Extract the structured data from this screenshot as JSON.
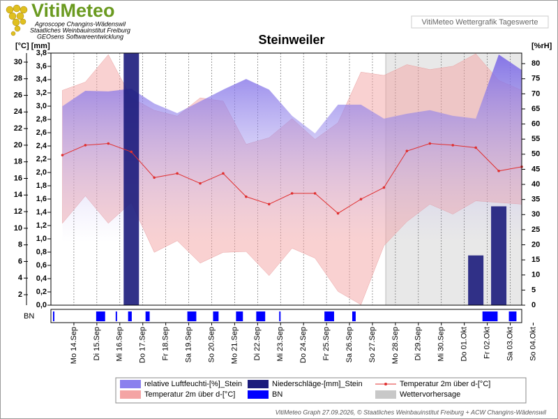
{
  "header": {
    "logo": "VitiMeteo",
    "lines": [
      "Agroscope Changins-Wädenswil",
      "Staatliches Weinbauinstitut Freiburg",
      "GEOsens Softwareentwicklung"
    ],
    "badge": "VitiMeteo Wettergrafik Tageswerte"
  },
  "footer": "VitiMeteo Graph 27.09.2026, © Staatliches Weinbauinstitut Freiburg + ACW Changins-Wädenswil",
  "chart_data": {
    "type": "weather",
    "title": "Steinweiler",
    "y_label": "[°C] [mm]",
    "y3_label": "[%rH]",
    "strip_label": "BN",
    "categories": [
      "Mo 14.Sep",
      "Di 15.Sep",
      "Mi 16.Sep",
      "Do 17.Sep",
      "Fr 18.Sep",
      "Sa 19.Sep",
      "So 20.Sep",
      "Mo 21.Sep",
      "Di 22.Sep",
      "Mi 23.Sep",
      "Do 24.Sep",
      "Fr 25.Sep",
      "Sa 26.Sep",
      "So 27.Sep",
      "Mo 28.Sep",
      "Di 29.Sep",
      "Mi 30.Sep",
      "Do 01.Okt",
      "Fr 02.Okt",
      "Sa 03.Okt",
      "So 04.Okt"
    ],
    "xlim": [
      -1,
      19.5
    ],
    "grid": true,
    "ylim": [
      0.74,
      31.09
    ],
    "yticks": [
      2,
      4,
      6,
      8,
      10,
      12,
      14,
      16,
      18,
      20,
      22,
      24,
      26,
      28,
      30
    ],
    "y2lim": [
      0,
      3.8
    ],
    "y2ticks": [
      {
        "value": 0,
        "label": "0,0"
      },
      {
        "value": 0.2,
        "label": "0,2"
      },
      {
        "value": 0.4,
        "label": "0,4"
      },
      {
        "value": 0.6,
        "label": "0,6"
      },
      {
        "value": 0.8,
        "label": "0,8"
      },
      {
        "value": 1.0,
        "label": "1,0"
      },
      {
        "value": 1.2,
        "label": "1,2"
      },
      {
        "value": 1.4,
        "label": "1,4"
      },
      {
        "value": 1.6,
        "label": "1,6"
      },
      {
        "value": 1.8,
        "label": "1,8"
      },
      {
        "value": 2.0,
        "label": "2,0"
      },
      {
        "value": 2.2,
        "label": "2,2"
      },
      {
        "value": 2.4,
        "label": "2,4"
      },
      {
        "value": 2.6,
        "label": "2,6"
      },
      {
        "value": 2.8,
        "label": "2,8"
      },
      {
        "value": 3.0,
        "label": "3,0"
      },
      {
        "value": 3.2,
        "label": "3,2"
      },
      {
        "value": 3.4,
        "label": "3,4"
      },
      {
        "value": 3.6,
        "label": "3,6"
      },
      {
        "value": 3.8,
        "label": "3,8"
      }
    ],
    "y3lim": [
      0,
      83.5
    ],
    "y3ticks": [
      0,
      5,
      10,
      15,
      20,
      25,
      30,
      35,
      40,
      45,
      50,
      55,
      60,
      65,
      70,
      75,
      80
    ],
    "series": [
      {
        "name": "relative Luftfeuchti-[%]_Stein",
        "color": "#8474ea",
        "type": "area",
        "axis": "y3",
        "values": [
          65.9,
          71.0,
          70.8,
          71.7,
          66.8,
          63.6,
          67.5,
          71.4,
          74.9,
          71.4,
          62.7,
          56.9,
          66.4,
          66.4,
          61.8,
          63.4,
          64.6,
          62.7,
          61.8,
          83.0,
          77.9
        ]
      },
      {
        "name": "Niederschläge-[mm]_Stein",
        "color": "#1c1c7c",
        "type": "bar",
        "axis": "y2",
        "values": [
          0,
          0,
          0,
          3.8,
          0,
          0,
          0,
          0,
          0,
          0,
          0,
          0,
          0,
          0,
          0,
          0,
          0,
          0,
          0.75,
          1.49,
          0
        ]
      },
      {
        "name": "Temperatur 2m über d-[°C]",
        "color": "#e03030",
        "type": "line",
        "axis": "y",
        "values": [
          18.8,
          20.0,
          20.2,
          19.2,
          16.1,
          16.6,
          15.4,
          16.6,
          13.8,
          12.9,
          14.2,
          14.2,
          11.8,
          13.5,
          14.9,
          19.3,
          20.2,
          20.0,
          19.7,
          16.9,
          17.4
        ]
      },
      {
        "name": "Temperatur 2m über d-[°C]",
        "color": "#f4a4a4",
        "type": "band",
        "axis": "y",
        "high": [
          26.6,
          27.6,
          30.9,
          25.7,
          24.2,
          23.5,
          25.7,
          25.3,
          20.1,
          20.9,
          23.2,
          20.7,
          22.7,
          28.8,
          28.4,
          29.7,
          29.1,
          29.5,
          31.0,
          27.8,
          26.6
        ],
        "low": [
          10.6,
          13.9,
          10.6,
          13.1,
          7.1,
          8.5,
          5.8,
          7.1,
          7.2,
          4.3,
          7.6,
          6.4,
          2.4,
          0.8,
          7.9,
          10.8,
          12.9,
          11.7,
          13.3,
          13.1,
          12.9
        ]
      },
      {
        "name": "BN",
        "color": "#0000ff",
        "type": "intervals",
        "intervals": [
          [
            -0.91,
            -0.85
          ],
          [
            0.97,
            1.36
          ],
          [
            1.82,
            1.88
          ],
          [
            2.36,
            2.52
          ],
          [
            3.12,
            3.3
          ],
          [
            4.94,
            5.33
          ],
          [
            6.06,
            6.3
          ],
          [
            7.06,
            7.36
          ],
          [
            7.94,
            8.33
          ],
          [
            8.94,
            9.0
          ],
          [
            10.91,
            11.33
          ],
          [
            12.12,
            12.27
          ],
          [
            17.79,
            18.45
          ],
          [
            18.94,
            19.27
          ]
        ]
      },
      {
        "name": "Wettervorhersage",
        "color": "#c8c8c8",
        "type": "region",
        "start": 13.58
      }
    ]
  }
}
